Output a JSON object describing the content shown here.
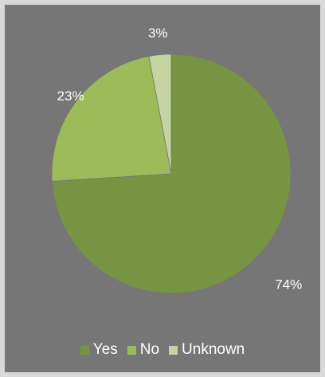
{
  "chart_data": {
    "type": "pie",
    "title": "",
    "categories": [
      "Yes",
      "No",
      "Unknown"
    ],
    "values": [
      74,
      23,
      3
    ],
    "data_labels": [
      "74%",
      "23%",
      "3%"
    ],
    "colors": [
      "#779442",
      "#9cbc59",
      "#c4d6a0"
    ],
    "start_angle_deg": 0,
    "direction": "clockwise",
    "legend_position": "bottom",
    "background_color": "#767676"
  }
}
